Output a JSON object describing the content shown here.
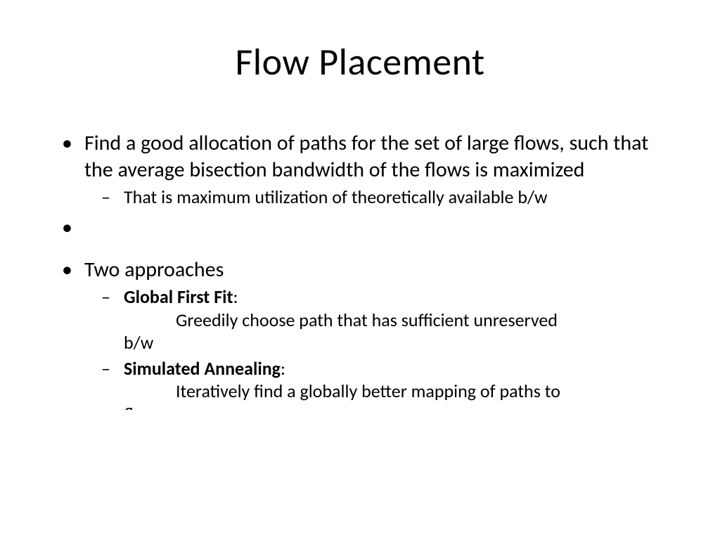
{
  "title": "Flow Placement",
  "bullets": {
    "b1": {
      "text": "Find a good allocation of paths for the set of large flows, such that the average bisection bandwidth of the flows is maximized",
      "sub1": "That is maximum utilization of theoretically available b/w"
    },
    "b2": {
      "text": "Two approaches",
      "gff_label": "Global First Fit",
      "gff_colon": ":",
      "gff_desc_indent": "Greedily choose path that has sufficient unreserved",
      "gff_desc_cont": "b/w",
      "sa_label": "Simulated Annealing",
      "sa_colon": ":",
      "sa_desc_indent": "Iteratively find a globally better mapping of paths to",
      "sa_desc_cont": "flows"
    }
  }
}
